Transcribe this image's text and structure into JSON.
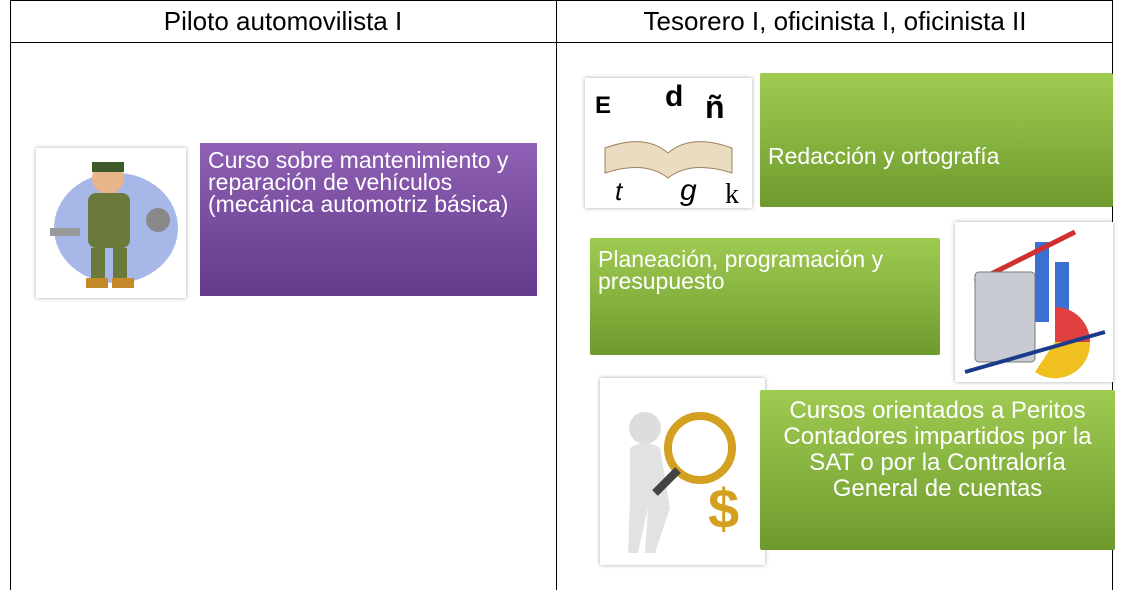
{
  "table": {
    "header": [
      "Piloto automovilista I",
      "Tesorero I, oficinista I, oficinista II"
    ],
    "cells": [
      [
        "Curso sobre mantenimiento y reparación de vehículos (mecánica automotriz básica)"
      ],
      [
        "Redacción y ortografía",
        "Planeación, programación y presupuesto",
        "Cursos orientados a Peritos Contadores impartidos por la SAT o por la Contraloría General de cuentas"
      ]
    ]
  }
}
